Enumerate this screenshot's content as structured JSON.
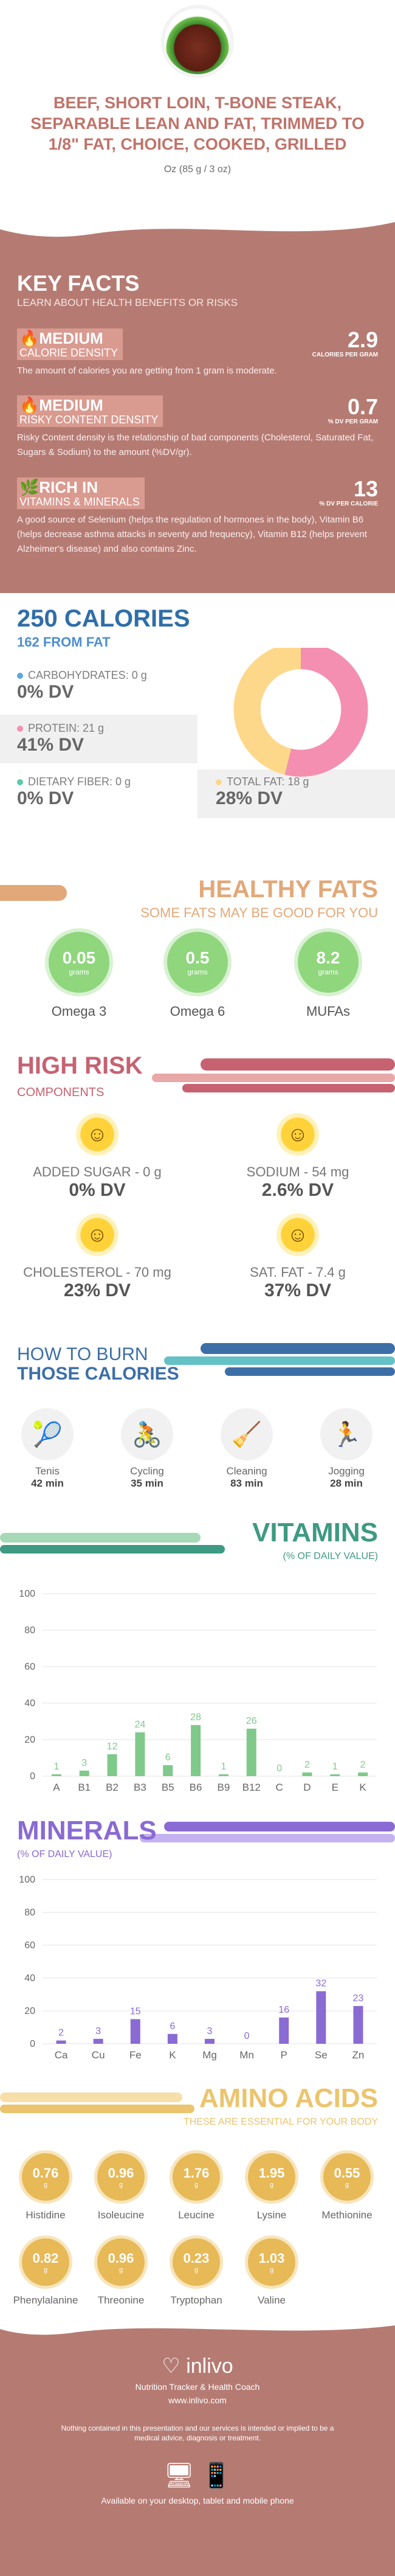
{
  "header": {
    "title": "BEEF, SHORT LOIN, T-BONE STEAK, SEPARABLE LEAN AND FAT, TRIMMED TO 1/8\" FAT, CHOICE, COOKED, GRILLED",
    "serving": "Oz (85 g / 3 oz)"
  },
  "key_facts": {
    "title": "KEY FACTS",
    "subtitle": "LEARN ABOUT HEALTH BENEFITS OR RISKS",
    "items": [
      {
        "level": "MEDIUM",
        "label": "CALORIE DENSITY",
        "value": "2.9",
        "unit": "CALORIES PER GRAM",
        "desc": "The amount of calories you are getting from 1 gram is moderate."
      },
      {
        "level": "MEDIUM",
        "label": "RISKY CONTENT DENSITY",
        "value": "0.7",
        "unit": "% DV PER GRAM",
        "desc": "Risky Content density is the relationship of bad components (Cholesterol, Saturated Fat, Sugars & Sodium) to the amount (%DV/gr)."
      },
      {
        "level": "RICH  IN",
        "label": "VITAMINS & MINERALS",
        "value": "13",
        "unit": "% DV PER CALORIE",
        "desc": "A good source of Selenium (helps the regulation of hormones in the body), Vitamin B6 (helps decrease asthma attacks in seventy and frequency), Vitamin B12 (helps prevent Alzheimer's disease) and also contains Zinc."
      }
    ]
  },
  "calories": {
    "title": "250 CALORIES",
    "subtitle": "162 FROM FAT",
    "carbs_label": "CARBOHYDRATES: 0 g",
    "carbs_dv": "0% DV",
    "protein_label": "PROTEIN: 21 g",
    "protein_dv": "41% DV",
    "fiber_label": "DIETARY FIBER: 0 g",
    "fiber_dv": "0% DV",
    "fat_label": "TOTAL FAT: 18 g",
    "fat_dv": "28% DV",
    "colors": {
      "carbs": "#5aa7e0",
      "protein": "#f48fb1",
      "fiber": "#5cc9a7",
      "fat": "#fdd88a"
    }
  },
  "fats": {
    "title": "HEALTHY FATS",
    "subtitle": "SOME FATS MAY BE GOOD FOR YOU",
    "items": [
      {
        "value": "0.05",
        "unit": "grams",
        "name": "Omega 3"
      },
      {
        "value": "0.5",
        "unit": "grams",
        "name": "Omega 6"
      },
      {
        "value": "8.2",
        "unit": "grams",
        "name": "MUFAs"
      }
    ]
  },
  "risk": {
    "title": "HIGH RISK",
    "subtitle": "COMPONENTS",
    "items": [
      {
        "label": "ADDED SUGAR - 0 g",
        "dv": "0% DV"
      },
      {
        "label": "SODIUM - 54 mg",
        "dv": "2.6% DV"
      },
      {
        "label": "CHOLESTEROL - 70 mg",
        "dv": "23% DV"
      },
      {
        "label": "SAT. FAT - 7.4 g",
        "dv": "37% DV"
      }
    ]
  },
  "burn": {
    "title1": "HOW TO BURN",
    "title2": "THOSE CALORIES",
    "items": [
      {
        "name": "Tenis",
        "min": "42 min",
        "icon": "tennis-icon"
      },
      {
        "name": "Cycling",
        "min": "35 min",
        "icon": "cycling-icon"
      },
      {
        "name": "Cleaning",
        "min": "83 min",
        "icon": "cleaning-icon"
      },
      {
        "name": "Jogging",
        "min": "28 min",
        "icon": "jogging-icon"
      }
    ]
  },
  "vitamins": {
    "title": "VITAMINS",
    "subtitle": "(% OF DAILY VALUE)"
  },
  "minerals": {
    "title": "MINERALS",
    "subtitle": "(% OF DAILY VALUE)"
  },
  "chart_data": [
    {
      "type": "bar",
      "categories": [
        "A",
        "B1",
        "B2",
        "B3",
        "B5",
        "B6",
        "B9",
        "B12",
        "C",
        "D",
        "E",
        "K"
      ],
      "values": [
        1,
        3,
        12,
        24,
        6,
        28,
        1,
        26,
        0,
        2,
        1,
        2
      ],
      "ylim": [
        0,
        100
      ],
      "yticks": [
        0,
        20,
        40,
        60,
        80,
        100
      ],
      "color": "#7fc98a"
    },
    {
      "type": "bar",
      "categories": [
        "Ca",
        "Cu",
        "Fe",
        "K",
        "Mg",
        "Mn",
        "P",
        "Se",
        "Zn"
      ],
      "values": [
        2,
        3,
        15,
        6,
        3,
        0,
        16,
        32,
        23
      ],
      "ylim": [
        0,
        100
      ],
      "yticks": [
        0,
        20,
        40,
        60,
        80,
        100
      ],
      "color": "#8a6ad3"
    }
  ],
  "amino": {
    "title": "AMINO ACIDS",
    "subtitle": "THESE ARE ESSENTIAL FOR YOUR BODY",
    "items": [
      {
        "value": "0.76",
        "unit": "g",
        "name": "Histidine"
      },
      {
        "value": "0.96",
        "unit": "g",
        "name": "Isoleucine"
      },
      {
        "value": "1.76",
        "unit": "g",
        "name": "Leucine"
      },
      {
        "value": "1.95",
        "unit": "g",
        "name": "Lysine"
      },
      {
        "value": "0.55",
        "unit": "g",
        "name": "Methionine"
      },
      {
        "value": "0.82",
        "unit": "g",
        "name": "Phenylalanine"
      },
      {
        "value": "0.96",
        "unit": "g",
        "name": "Threonine"
      },
      {
        "value": "0.23",
        "unit": "g",
        "name": "Tryptophan"
      },
      {
        "value": "1.03",
        "unit": "g",
        "name": "Valine"
      }
    ]
  },
  "footer": {
    "brand": "inlivo",
    "tagline": "Nutrition Tracker & Health Coach",
    "url": "www.inlivo.com",
    "disclaimer": "Nothing contained in this presentation and our services is intended or implied to be a medical advice, diagnosis or treatment.",
    "available": "Available on your desktop, tablet and mobile phone"
  }
}
